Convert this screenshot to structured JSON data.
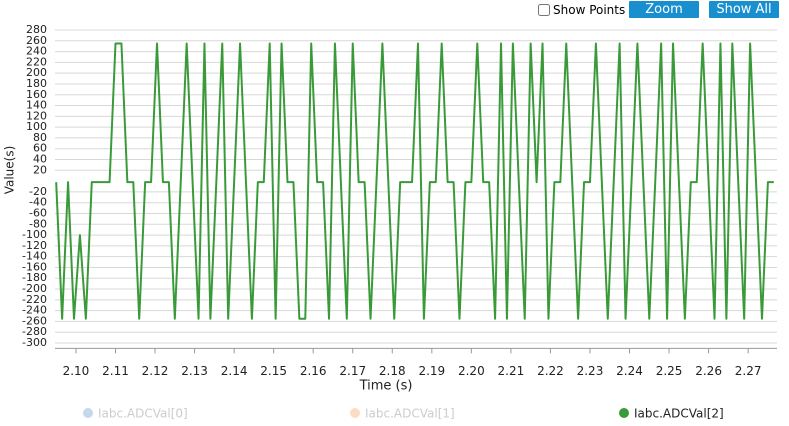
{
  "controls": {
    "show_points": {
      "label": "Show Points",
      "checked": false
    },
    "buttons": [
      "Zoom",
      "Show All"
    ]
  },
  "chart_data": {
    "type": "line",
    "x_label": "Time (s)",
    "y_label": "Value(s)",
    "xlim": [
      2.0947,
      2.2773
    ],
    "xticks": [
      {
        "value": 2.1,
        "label": "2.10"
      },
      2.11,
      2.12,
      2.13,
      2.14,
      2.15,
      2.16,
      2.17,
      2.18,
      2.19,
      {
        "value": 2.2,
        "label": "2.20"
      },
      2.21,
      2.22,
      2.23,
      2.24,
      2.25,
      2.26,
      2.27
    ],
    "ylim": [
      -310,
      290
    ],
    "yticks": [
      280,
      260,
      240,
      220,
      200,
      180,
      160,
      140,
      120,
      100,
      80,
      60,
      40,
      20,
      -20,
      -40,
      -60,
      -80,
      -100,
      -120,
      -140,
      -160,
      -180,
      -200,
      -220,
      -240,
      -260,
      -280,
      -300
    ],
    "grid": true,
    "x": [
      2.095,
      2.0965,
      2.098,
      2.0995,
      2.101,
      2.1025,
      2.104,
      2.1055,
      2.107,
      2.1085,
      2.11,
      2.1115,
      2.113,
      2.1145,
      2.116,
      2.1175,
      2.119,
      2.1205,
      2.122,
      2.1235,
      2.125,
      2.1265,
      2.128,
      2.1295,
      2.131,
      2.1325,
      2.134,
      2.1355,
      2.137,
      2.1385,
      2.14,
      2.1415,
      2.143,
      2.1445,
      2.146,
      2.1475,
      2.149,
      2.1505,
      2.152,
      2.1535,
      2.155,
      2.1565,
      2.158,
      2.1595,
      2.161,
      2.1625,
      2.164,
      2.1655,
      2.167,
      2.1685,
      2.17,
      2.1715,
      2.173,
      2.1745,
      2.176,
      2.1775,
      2.179,
      2.1805,
      2.182,
      2.1835,
      2.185,
      2.1865,
      2.188,
      2.1895,
      2.191,
      2.1925,
      2.194,
      2.1955,
      2.197,
      2.1985,
      2.2,
      2.2015,
      2.203,
      2.2045,
      2.206,
      2.2075,
      2.209,
      2.2105,
      2.212,
      2.2135,
      2.215,
      2.2165,
      2.218,
      2.2195,
      2.221,
      2.2225,
      2.224,
      2.2255,
      2.227,
      2.2285,
      2.23,
      2.2315,
      2.233,
      2.2345,
      2.236,
      2.2375,
      2.239,
      2.2405,
      2.242,
      2.2435,
      2.245,
      2.2465,
      2.248,
      2.2495,
      2.251,
      2.2525,
      2.254,
      2.2555,
      2.257,
      2.2585,
      2.26,
      2.2615,
      2.263,
      2.2645,
      2.266,
      2.2675,
      2.269,
      2.2705,
      2.272,
      2.2735,
      2.275,
      2.2765
    ],
    "series": [
      {
        "name": "Iabc.ADCVal[0]",
        "color": "#c5d8ec",
        "visible": false
      },
      {
        "name": "Iabc.ADCVal[1]",
        "color": "#fbdcc4",
        "visible": false
      },
      {
        "name": "Iabc.ADCVal[2]",
        "color": "#3a9a3a",
        "visible": true,
        "values": [
          -2,
          -255,
          -2,
          -255,
          -100,
          -255,
          -2,
          -2,
          -2,
          -2,
          255,
          255,
          -2,
          -2,
          -255,
          -2,
          -2,
          255,
          -2,
          -2,
          -255,
          -2,
          255,
          -2,
          -255,
          255,
          -255,
          -2,
          255,
          -255,
          -2,
          255,
          -2,
          -255,
          -2,
          -2,
          255,
          -255,
          255,
          -2,
          -2,
          -255,
          -255,
          255,
          -2,
          -2,
          -255,
          255,
          -2,
          -255,
          255,
          -2,
          -2,
          -255,
          -2,
          255,
          -2,
          -255,
          -2,
          -2,
          -2,
          255,
          -255,
          -2,
          -2,
          255,
          -2,
          -2,
          -255,
          -2,
          -2,
          255,
          -2,
          -2,
          -255,
          255,
          -255,
          255,
          -2,
          -255,
          255,
          -2,
          255,
          -255,
          -2,
          -2,
          255,
          -2,
          -255,
          -2,
          -2,
          255,
          -2,
          -255,
          -2,
          255,
          -255,
          -2,
          255,
          -2,
          -255,
          -2,
          255,
          -255,
          255,
          -2,
          -255,
          -2,
          -2,
          255,
          -2,
          -255,
          255,
          -255,
          255,
          -2,
          -255,
          255,
          -2,
          -255,
          -2,
          -2
        ]
      }
    ]
  }
}
